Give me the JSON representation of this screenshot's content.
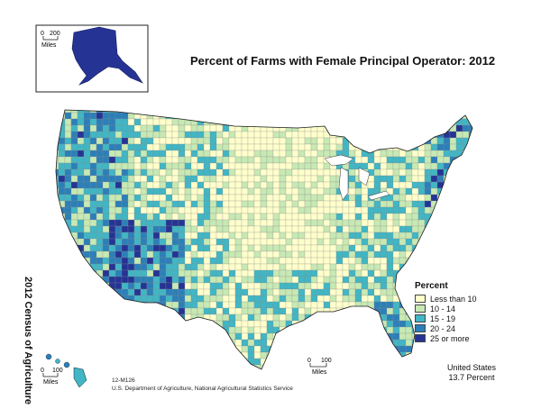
{
  "map": {
    "title": "Percent of Farms with Female Principal Operator:  2012",
    "side_label": "2012 Census of Agriculture",
    "map_id": "12-M126",
    "source": "U.S. Department of Agriculture, National Agricultural Statistics Service",
    "united_states": "United States",
    "us_value": "13.7 Percent"
  },
  "legend": {
    "title": "Percent",
    "classes": [
      {
        "label": "Less than 10",
        "color": "#ffffcc"
      },
      {
        "label": "10 - 14",
        "color": "#c7e9b4"
      },
      {
        "label": "15 - 19",
        "color": "#41b6c4"
      },
      {
        "label": "20 - 24",
        "color": "#2c7fb8"
      },
      {
        "label": "25 or more",
        "color": "#253494"
      }
    ]
  },
  "scales": {
    "alaska": {
      "zero": "0",
      "value": "200",
      "unit": "Miles"
    },
    "hawaii": {
      "zero": "0",
      "value": "100",
      "unit": "Miles"
    },
    "conus": {
      "zero": "0",
      "value": "100",
      "unit": "Miles"
    }
  }
}
